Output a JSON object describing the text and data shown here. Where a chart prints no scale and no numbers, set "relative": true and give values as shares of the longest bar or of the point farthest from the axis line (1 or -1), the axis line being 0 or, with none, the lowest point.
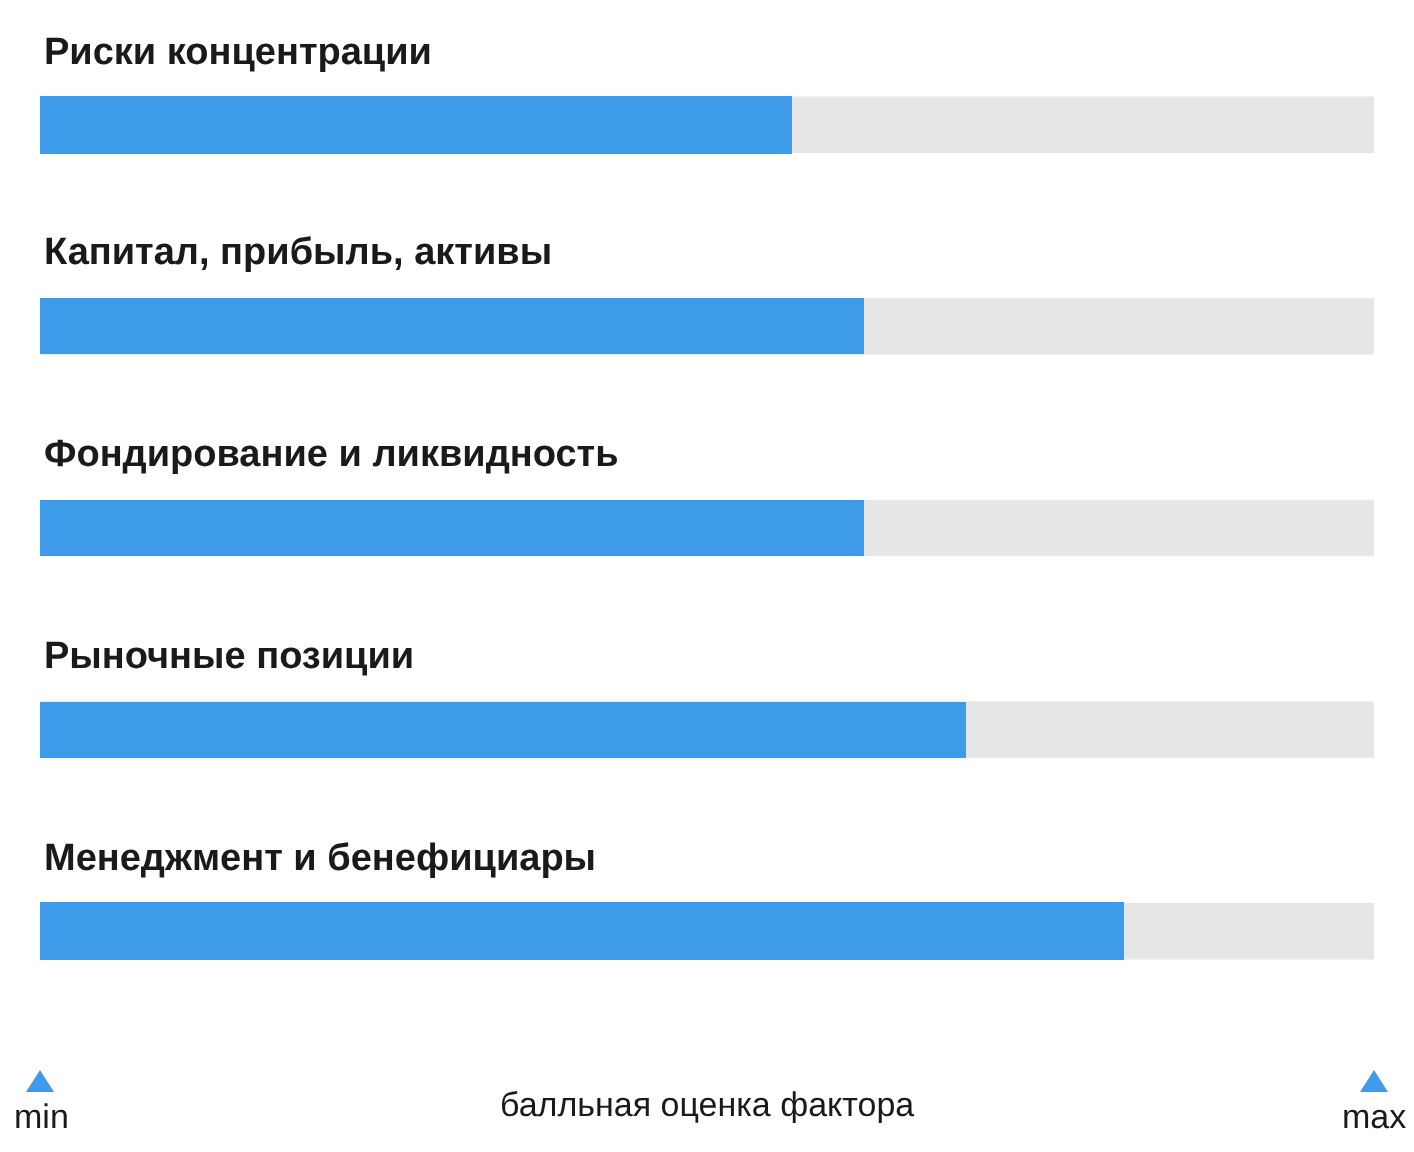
{
  "chart_data": {
    "type": "bar",
    "orientation": "horizontal",
    "relative": true,
    "categories": [
      "Риски концентрации",
      "Капитал, прибыль, активы",
      "Фондирование и ликвидность",
      "Рыночные позиции",
      "Менеджмент и бенефициары"
    ],
    "values": [
      0.694,
      0.76,
      0.76,
      0.853,
      1
    ],
    "color": "#3d9be9",
    "xlabel": "балльная оценка фактора",
    "annotations": [
      "min",
      "max"
    ],
    "legend": false
  }
}
